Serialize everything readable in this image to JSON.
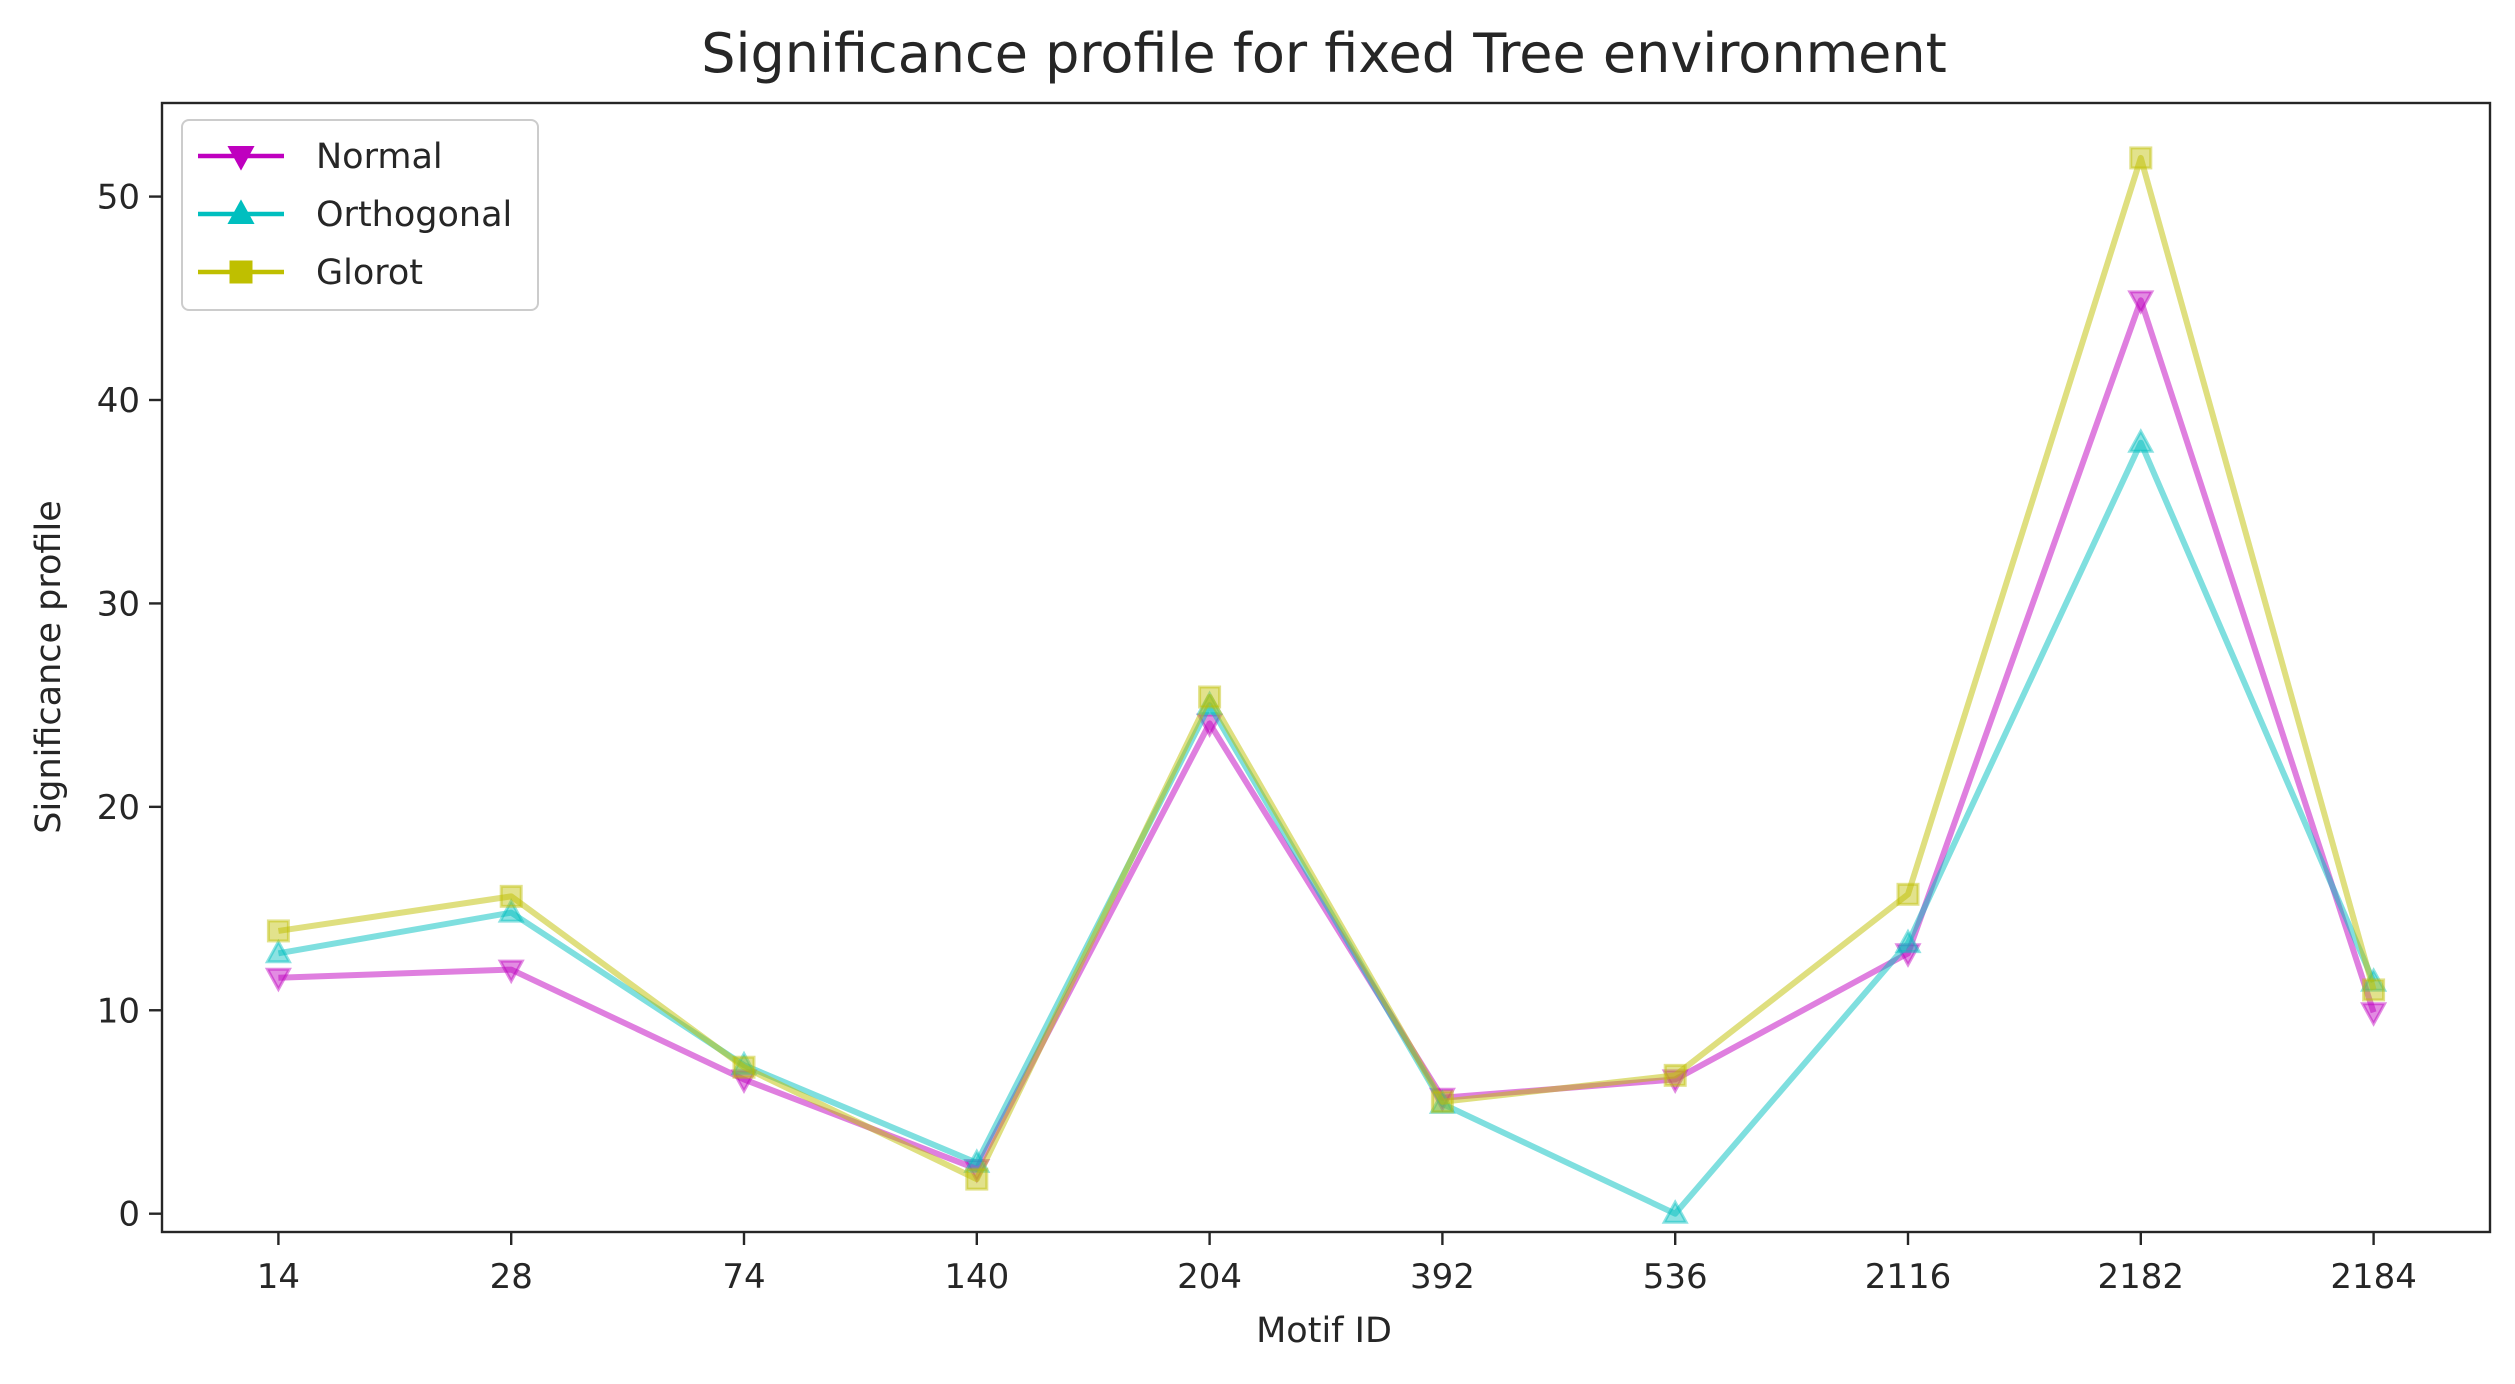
{
  "chart_data": {
    "type": "line",
    "title": "Significance profile for fixed Tree environment",
    "xlabel": "Motif ID",
    "ylabel": "Significance profile",
    "categories": [
      "14",
      "28",
      "74",
      "140",
      "204",
      "392",
      "536",
      "2116",
      "2182",
      "2184"
    ],
    "ylim": [
      -0.9,
      54.6
    ],
    "yticks": [
      0,
      10,
      20,
      30,
      40,
      50
    ],
    "grid": false,
    "legend_position": "top-left",
    "series": [
      {
        "name": "Normal",
        "color": "#bf00bf",
        "marker": "triangle-down",
        "values": [
          11.6,
          12.0,
          6.6,
          2.2,
          24.1,
          5.7,
          6.6,
          12.8,
          44.9,
          9.9
        ]
      },
      {
        "name": "Orthogonal",
        "color": "#00bfbf",
        "marker": "triangle-up",
        "values": [
          12.8,
          14.8,
          7.3,
          2.5,
          25.0,
          5.4,
          0.0,
          13.3,
          37.9,
          11.4
        ]
      },
      {
        "name": "Glorot",
        "color": "#bfbf00",
        "marker": "square",
        "values": [
          13.9,
          15.6,
          7.2,
          1.7,
          25.4,
          5.5,
          6.8,
          15.7,
          51.9,
          11.0
        ]
      }
    ]
  }
}
